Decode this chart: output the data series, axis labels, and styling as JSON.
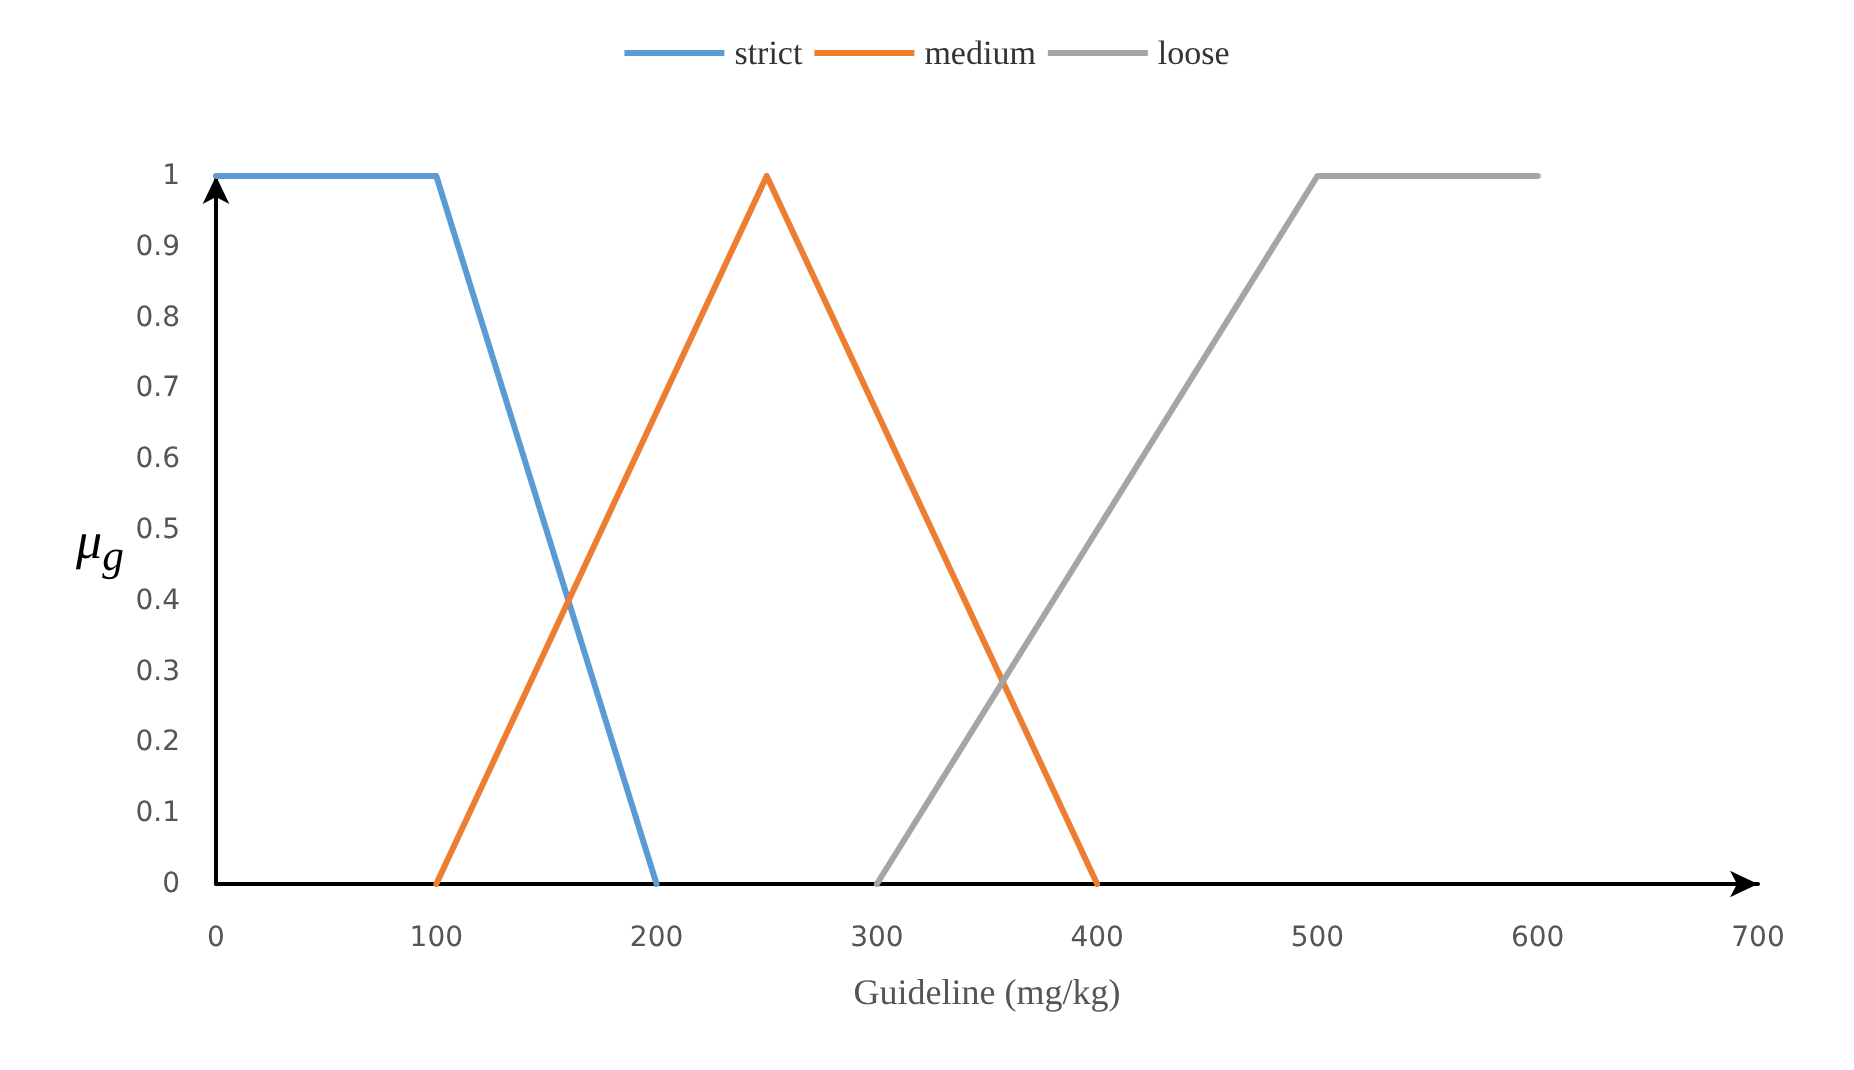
{
  "chart_data": {
    "type": "line",
    "xlabel": "Guideline (mg/kg)",
    "ylabel": "μ$_{g}$",
    "series": [
      {
        "name": "strict",
        "color": "#5b9bd5",
        "x": [
          0,
          100,
          200
        ],
        "values": [
          1,
          1,
          0
        ]
      },
      {
        "name": "medium",
        "color": "#ed7d31",
        "x": [
          100,
          250,
          400
        ],
        "values": [
          0,
          1,
          0
        ]
      },
      {
        "name": "loose",
        "color": "#a5a5a5",
        "x": [
          300,
          500,
          600
        ],
        "values": [
          0,
          1,
          1
        ]
      }
    ],
    "xlim": [
      0,
      700
    ],
    "xticks": [
      0,
      100,
      200,
      300,
      400,
      500,
      600,
      700
    ],
    "ylim": [
      0,
      1
    ],
    "yticks": [
      0,
      0.1,
      0.2,
      0.3,
      0.4,
      0.5,
      0.6,
      0.7,
      0.8,
      0.9,
      1
    ],
    "grid": false,
    "legend": "top",
    "marker": "none",
    "line_style": "solid"
  }
}
